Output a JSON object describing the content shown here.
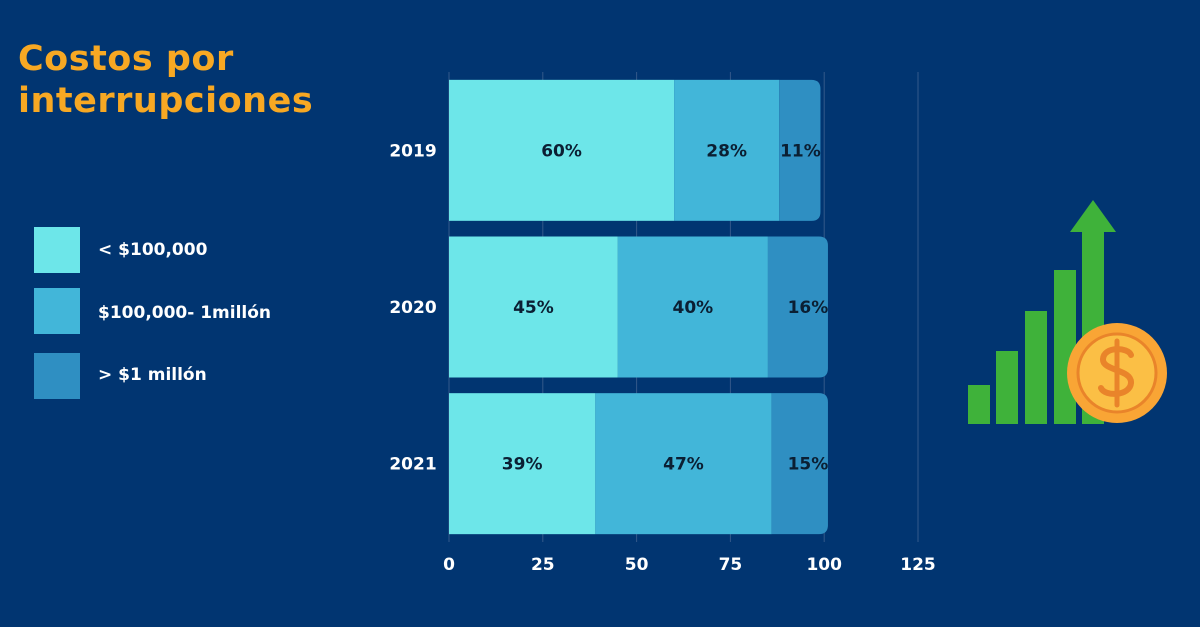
{
  "title": {
    "line1": "Costos por",
    "line2": "interrupciones"
  },
  "legend": [
    {
      "label": "< $100,000",
      "color": "#6de6e9"
    },
    {
      "label": "$100,000- 1millón",
      "color": "#42b6d9"
    },
    {
      "label": "> $1 millón",
      "color": "#2f8fc2"
    }
  ],
  "chart_data": {
    "type": "bar",
    "orientation": "horizontal",
    "stacked": true,
    "categories": [
      "2019",
      "2020",
      "2021"
    ],
    "series": [
      {
        "name": "< $100,000",
        "values": [
          60,
          45,
          39
        ],
        "labels": [
          "60%",
          "45%",
          "39%"
        ],
        "color": "#6de6e9"
      },
      {
        "name": "$100,000- 1millón",
        "values": [
          28,
          40,
          47
        ],
        "labels": [
          "28%",
          "40%",
          "47%"
        ],
        "color": "#42b6d9"
      },
      {
        "name": "> $1 millón",
        "values": [
          11,
          16,
          15
        ],
        "labels": [
          "11%",
          "16%",
          "15%"
        ],
        "color": "#2f8fc2"
      }
    ],
    "xlim": [
      0,
      125
    ],
    "xticks": [
      0,
      25,
      50,
      75,
      100,
      125
    ],
    "grid": true
  },
  "icon": "growth-bars-with-dollar-coin-icon",
  "colors": {
    "background": "#013571",
    "title": "#f7a823",
    "axis_text": "#ffffff",
    "label_text": "#0b1f33",
    "gridline": "#33598a",
    "growth_bars": "#3fb23a",
    "coin": "#f9a535"
  }
}
